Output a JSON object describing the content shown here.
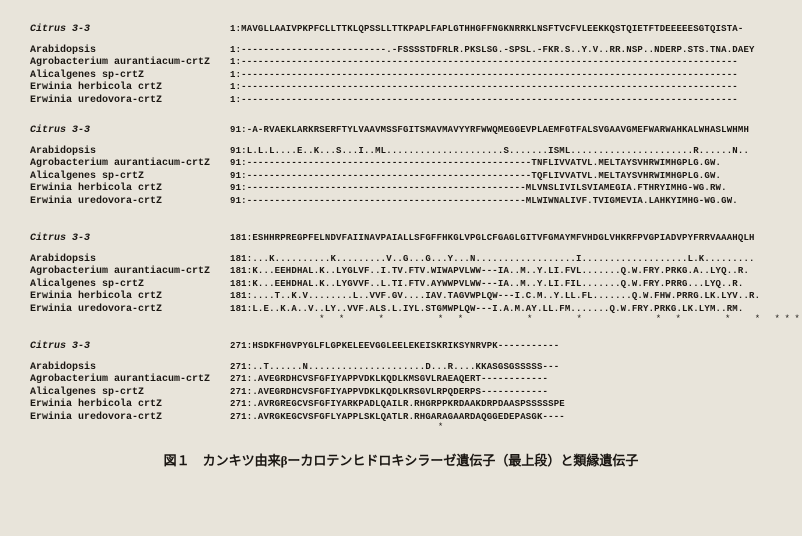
{
  "blocks": [
    {
      "rows": [
        {
          "label": "Citrus 3-3",
          "italic": true,
          "seq": "1:MAVGLLAAIVPKPFCLLTTKLQPSSLLTTKPAPLFAPLGTHHGFFNGKNRRKLNSFTVCFVLEEKKQSTQIETFTDEEEEESGTQISTA-"
        },
        {
          "label": "",
          "seq": ""
        },
        {
          "label": "Arabidopsis",
          "seq": "1:--------------------------.-FSSSSTDFRLR.PKSLSG.-SPSL.-FKR.S..Y.V..RR.NSP..NDERP.STS.TNA.DAEY"
        },
        {
          "label": "Agrobacterium aurantiacum-crtZ",
          "seq": "1:-----------------------------------------------------------------------------------------"
        },
        {
          "label": "Alicalgenes sp-crtZ",
          "seq": "1:-----------------------------------------------------------------------------------------"
        },
        {
          "label": "Erwinia herbicola crtZ",
          "seq": "1:-----------------------------------------------------------------------------------------"
        },
        {
          "label": "Erwinia uredovora-crtZ",
          "seq": "1:-----------------------------------------------------------------------------------------"
        }
      ],
      "markers": ""
    },
    {
      "rows": [
        {
          "label": "Citrus 3-3",
          "italic": true,
          "seq": "91:-A-RVAEKLARKRSERFTYLVAAVMSSFGITSMAVMAVYYRFWWQMEGGEVPLAEMFGTFALSVGAAVGMEFWARWAHKALWHASLWHMH"
        },
        {
          "label": "",
          "seq": ""
        },
        {
          "label": "Arabidopsis",
          "seq": "91:L.L.L....E..K...S...I..ML.....................S.......ISML......................R......N.."
        },
        {
          "label": "Agrobacterium aurantiacum-crtZ",
          "seq": "91:---------------------------------------------------TNFLIVVATVL.MELTAYSVHRWIMHGPLG.GW."
        },
        {
          "label": "Alicalgenes sp-crtZ",
          "seq": "91:---------------------------------------------------TQFLIVVATVL.MELTAYSVHRWIMHGPLG.GW."
        },
        {
          "label": "Erwinia herbicola crtZ",
          "seq": "91:--------------------------------------------------MLVNSLIVILSVIAMEGIA.FTHRYIMHG-WG.RW."
        },
        {
          "label": "Erwinia uredovora-crtZ",
          "seq": "91:--------------------------------------------------MLWIWNALIVF.TVIGMEVIA.LAHKYIMHG-WG.GW."
        }
      ],
      "markers": "                                                                 *  *     *    *    *"
    },
    {
      "rows": [
        {
          "label": "Citrus 3-3",
          "italic": true,
          "seq": "181:ESHHRPREGPFELNDVFAIINAVPAIALLSFGFFHKGLVPGLCFGAGLGITVFGMAYMFVHDGLVHKRFPVGPIADVPYFRRVAAAHQLH"
        },
        {
          "label": "",
          "seq": ""
        },
        {
          "label": "Arabidopsis",
          "seq": "181:...K..........K.........V..G...G...Y...N..................I...................L.K........."
        },
        {
          "label": "Agrobacterium aurantiacum-crtZ",
          "seq": "181:K...EEHDHAL.K..LYGLVF..I.TV.FTV.WIWAPVLWW---IA..M..Y.LI.FVL.......Q.W.FRY.PRKG.A..LYQ..R."
        },
        {
          "label": "Alicalgenes sp-crtZ",
          "seq": "181:K...EEHDHAL.K..LYGVVF..L.TI.FTV.AYWWPVLWW---IA..M..Y.LI.FIL.......Q.W.FRY.PRRG...LYQ..R."
        },
        {
          "label": "Erwinia herbicola crtZ",
          "seq": "181:....T..K.V........L..VVF.GV....IAV.TAGVWPLQW---I.C.M..Y.LL.FL.......Q.W.FHW.PRRG.LK.LYV..R."
        },
        {
          "label": "Erwinia uredovora-crtZ",
          "seq": "181:L.E..K.A..V..LY..VVF.ALS.L.IYL.STGMWPLQW---I.A.M.AY.LL.FM.......Q.W.FRY.PRKG.LK.LYM..RM."
        }
      ],
      "markers": "         * *   *     * *      *    *       * *    *  * *****  *                   **  *"
    },
    {
      "rows": [
        {
          "label": "Citrus 3-3",
          "italic": true,
          "seq": "271:HSDKFHGVPYGLFLGPKELEEVGGLEELEKEISKRIKSYNRVPK-----------"
        },
        {
          "label": "",
          "seq": ""
        },
        {
          "label": "Arabidopsis",
          "seq": "271:..T......N.....................D...R....KKASGSGSSSSS---"
        },
        {
          "label": "Agrobacterium aurantiacum-crtZ",
          "seq": "271:.AVEGRDHCVSFGFIYAPPVDKLKQDLKMSGVLRAEAQERT------------"
        },
        {
          "label": "Alicalgenes sp-crtZ",
          "seq": "271:.AVEGRDHCVSFGFIYAPPVDKLKQDLKRSGVLRPQDERPS------------"
        },
        {
          "label": "Erwinia herbicola crtZ",
          "seq": "271:.AVRGREGCVSFGFIYARKPADLQAILR.RHGRPPKRDAAKDRPDAASPSSSSSPE"
        },
        {
          "label": "Erwinia uredovora-crtZ",
          "seq": "271:.AVRGKEGCVSFGFLYAPPLSKLQATLR.RHGARAGAARDAQGGEDEPASGK----"
        }
      ],
      "markers": "                     *"
    }
  ],
  "caption": "図１　カンキツ由来βーカロテンヒドロキシラーゼ遺伝子（最上段）と類縁遺伝子"
}
